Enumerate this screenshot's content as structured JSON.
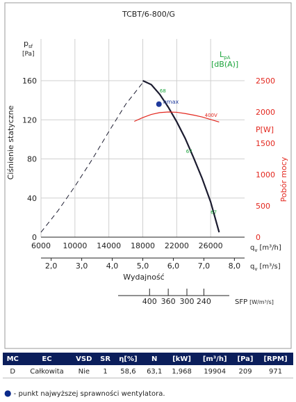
{
  "chart_data": {
    "type": "line",
    "title": "TCBT/6-800/G",
    "y_axis": {
      "label_top": "p",
      "label_top_sub": "sf",
      "unit": "[Pa]",
      "side_label": "Ciśnienie statyczne",
      "ticks": [
        0,
        40,
        80,
        120,
        160
      ],
      "range": [
        0,
        160
      ]
    },
    "power_axis": {
      "label": "P[W]",
      "side_label": "Pobór mocy",
      "ticks": [
        0,
        500,
        1000,
        1500,
        2000,
        2500
      ],
      "range": [
        0,
        2500
      ]
    },
    "x_axis_m3h": {
      "label": "q",
      "label_sub": "v",
      "unit": "[m³/h]",
      "ticks": [
        6000,
        10000,
        14000,
        18000,
        22000,
        26000
      ],
      "range": [
        6000,
        30000
      ]
    },
    "x_axis_m3s": {
      "label": "q",
      "label_sub": "v",
      "unit": "[m³/s]",
      "ticks": [
        "2,0",
        "3,0",
        "4,0",
        "5,0",
        "6,0",
        "7,0",
        "8,0"
      ],
      "tick_values": [
        2.0,
        3.0,
        4.0,
        5.0,
        6.0,
        7.0,
        8.0
      ]
    },
    "x_label": "Wydajność",
    "sfp_axis": {
      "label": "SFP",
      "unit": "[W/m³/s]",
      "ticks": [
        "400",
        "360",
        "300",
        "240"
      ],
      "tick_positions_m3h": [
        18800,
        21000,
        23200,
        25200
      ]
    },
    "lpa_label": "L",
    "lpa_sub": "pA",
    "lpa_unit": "[dB(A)]",
    "series": [
      {
        "name": "pressure-dashed",
        "style": "dashed",
        "x": [
          6000,
          8000,
          10000,
          12000,
          14000,
          16000,
          18000
        ],
        "y": [
          5,
          27,
          52,
          79,
          108,
          136,
          158
        ]
      },
      {
        "name": "pressure",
        "style": "solid",
        "x": [
          18000,
          19000,
          20000,
          21000,
          22000,
          23000,
          24000,
          25000,
          26000,
          27000
        ],
        "y": [
          160,
          156,
          146,
          133,
          118,
          101,
          81,
          60,
          36,
          5
        ]
      },
      {
        "name": "power",
        "style": "solid",
        "axis": "power",
        "x": [
          17000,
          18000,
          19000,
          20000,
          21000,
          22000,
          23000,
          24000,
          25000,
          26000,
          27000
        ],
        "y": [
          1850,
          1910,
          1960,
          1990,
          2000,
          1995,
          1975,
          1950,
          1920,
          1880,
          1840
        ]
      }
    ],
    "markers": [
      {
        "label": "ηmax",
        "x": 19904,
        "y": 136,
        "kind": "dot"
      }
    ],
    "annotations": [
      {
        "text": "68",
        "x": 20000,
        "y": 148
      },
      {
        "text": "67",
        "x": 23100,
        "y": 86
      },
      {
        "text": "67",
        "x": 26000,
        "y": 24
      },
      {
        "text": "400V",
        "x": 25300,
        "y": 1920,
        "axis": "power"
      }
    ]
  },
  "table": {
    "headers": [
      "MC",
      "EC",
      "VSD",
      "SR",
      "η[%]",
      "N",
      "[kW]",
      "[m³/h]",
      "[Pa]",
      "[RPM]"
    ],
    "rows": [
      [
        "D",
        "Całkowita",
        "Nie",
        "1",
        "58,6",
        "63,1",
        "1,968",
        "19904",
        "209",
        "971"
      ]
    ]
  },
  "note": "- punkt najwyższej sprawności wentylatora.",
  "colors": {
    "curve": "#1b1b2f",
    "power": "#e3261d",
    "lpa": "#1aa33a",
    "marker": "#1f3a9c",
    "header": "#0b1e5b"
  }
}
